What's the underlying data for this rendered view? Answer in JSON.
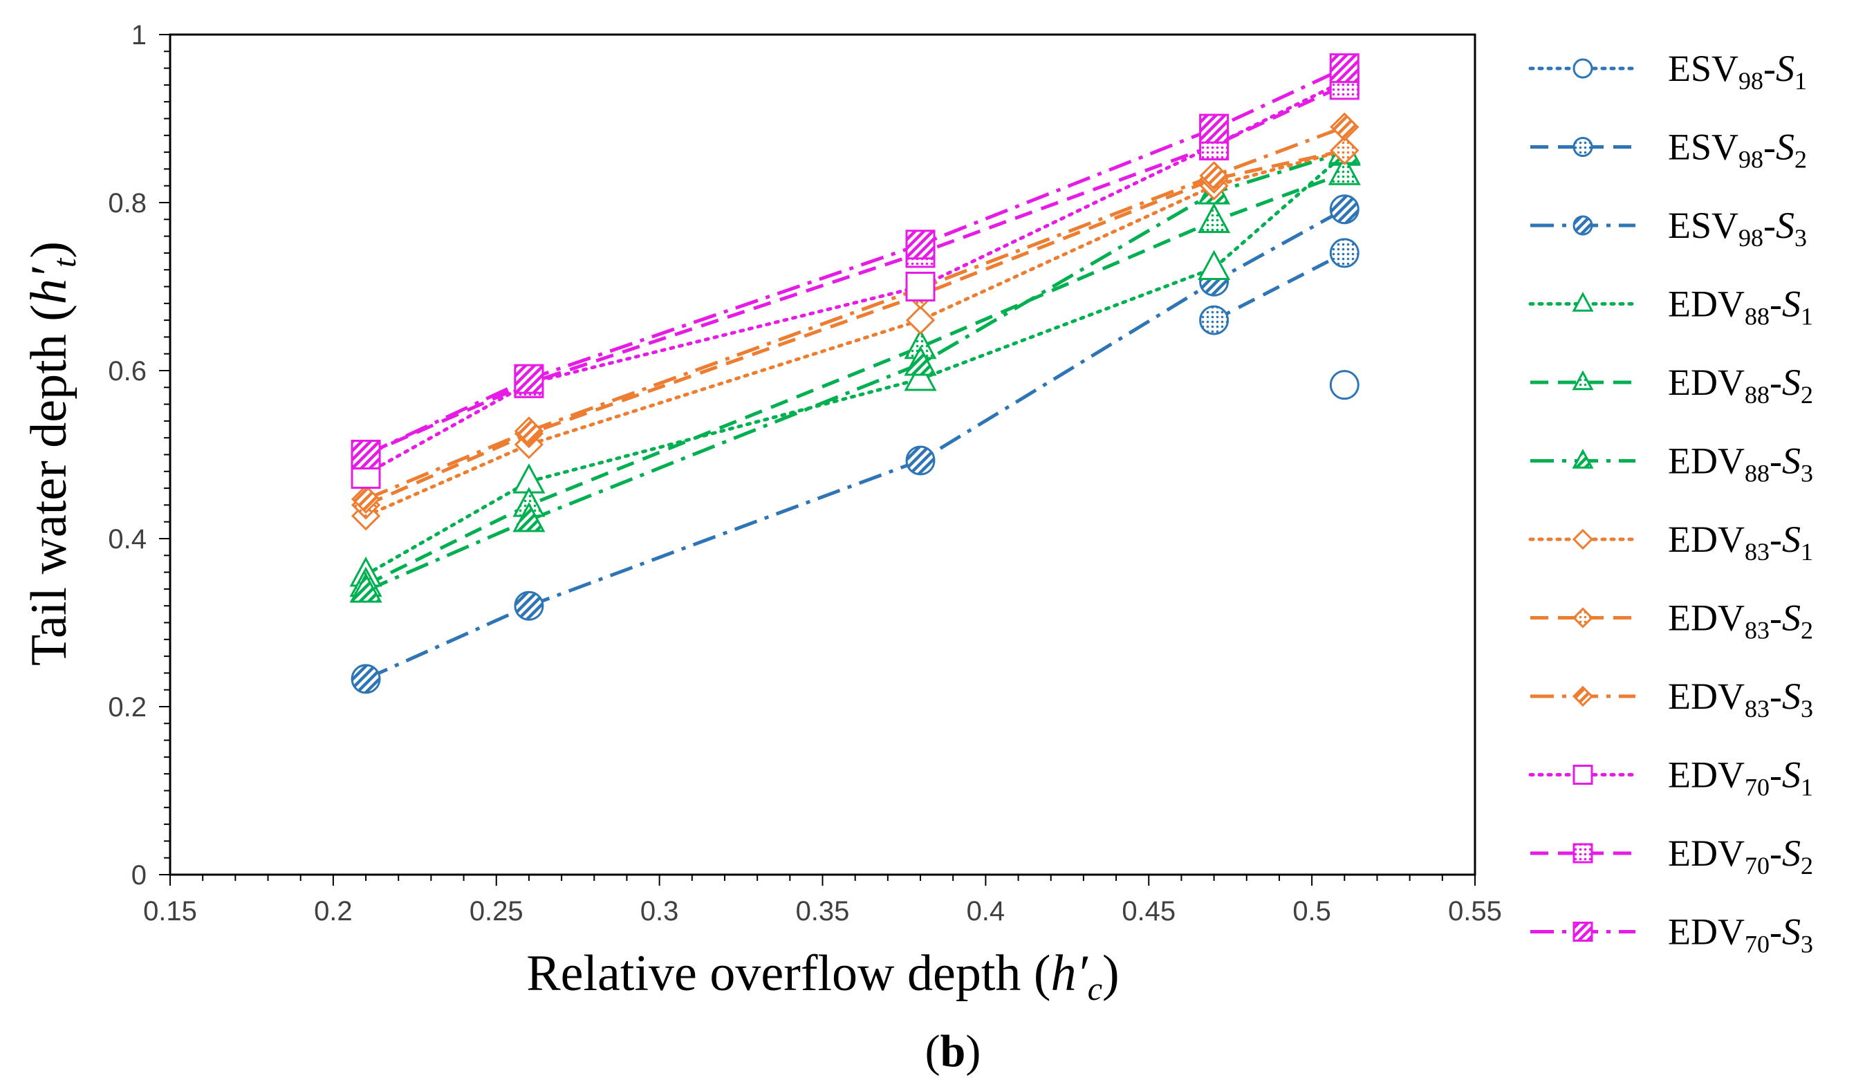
{
  "chart_data": {
    "type": "line",
    "xlabel": "Relative overflow depth",
    "xlabel_symbol": "h′",
    "xlabel_sub": "c",
    "ylabel": "Tail water depth",
    "ylabel_symbol": "h′",
    "ylabel_sub": "t",
    "caption_open": "(",
    "caption": "b",
    "caption_close": ")",
    "xlim": [
      0.15,
      0.55
    ],
    "ylim": [
      0,
      1
    ],
    "x_ticks": [
      "0.15",
      "0.2",
      "0.25",
      "0.3",
      "0.35",
      "0.4",
      "0.45",
      "0.5",
      "0.55"
    ],
    "y_ticks": [
      "0",
      "0.2",
      "0.4",
      "0.6",
      "0.8",
      "1"
    ],
    "x": [
      0.21,
      0.26,
      0.38,
      0.47,
      0.51
    ],
    "series": [
      {
        "name": "ESV98-S1",
        "base": "ESV",
        "num": "98",
        "s": "1",
        "color": "#2e75b6",
        "dash": "dot",
        "marker": "circle",
        "fill": "none",
        "values": [
          null,
          null,
          null,
          null,
          0.583
        ]
      },
      {
        "name": "ESV98-S2",
        "base": "ESV",
        "num": "98",
        "s": "2",
        "color": "#2e75b6",
        "dash": "dash",
        "marker": "circle",
        "fill": "dots",
        "values": [
          null,
          null,
          null,
          0.66,
          0.74
        ]
      },
      {
        "name": "ESV98-S3",
        "base": "ESV",
        "num": "98",
        "s": "3",
        "color": "#2e75b6",
        "dash": "dashdot",
        "marker": "circle",
        "fill": "hatch",
        "values": [
          0.233,
          0.32,
          0.493,
          0.706,
          0.792
        ]
      },
      {
        "name": "EDV88-S1",
        "base": "EDV",
        "num": "88",
        "s": "1",
        "color": "#00b050",
        "dash": "dot",
        "marker": "triangle",
        "fill": "none",
        "values": [
          0.357,
          0.468,
          0.59,
          0.722,
          0.858
        ]
      },
      {
        "name": "EDV88-S2",
        "base": "EDV",
        "num": "88",
        "s": "2",
        "color": "#00b050",
        "dash": "dash",
        "marker": "triangle",
        "fill": "dots",
        "values": [
          0.345,
          0.44,
          0.628,
          0.778,
          0.835
        ]
      },
      {
        "name": "EDV88-S3",
        "base": "EDV",
        "num": "88",
        "s": "3",
        "color": "#00b050",
        "dash": "dashdot",
        "marker": "triangle",
        "fill": "hatch",
        "values": [
          0.338,
          0.422,
          0.608,
          0.812,
          0.86
        ]
      },
      {
        "name": "EDV83-S1",
        "base": "EDV",
        "num": "83",
        "s": "1",
        "color": "#ed7d31",
        "dash": "dot",
        "marker": "diamond",
        "fill": "none",
        "values": [
          0.427,
          0.512,
          0.66,
          0.82,
          0.862
        ]
      },
      {
        "name": "EDV83-S2",
        "base": "EDV",
        "num": "83",
        "s": "2",
        "color": "#ed7d31",
        "dash": "dash",
        "marker": "diamond",
        "fill": "dots",
        "values": [
          0.44,
          0.525,
          0.69,
          0.828,
          0.862
        ]
      },
      {
        "name": "EDV83-S3",
        "base": "EDV",
        "num": "83",
        "s": "3",
        "color": "#ed7d31",
        "dash": "dashdot",
        "marker": "diamond",
        "fill": "hatch",
        "values": [
          0.447,
          0.528,
          0.698,
          0.832,
          0.89
        ]
      },
      {
        "name": "EDV70-S1",
        "base": "EDV",
        "num": "70",
        "s": "1",
        "color": "#e61ce6",
        "dash": "dot",
        "marker": "square",
        "fill": "none",
        "values": [
          0.477,
          0.585,
          0.7,
          0.868,
          0.945
        ]
      },
      {
        "name": "EDV70-S2",
        "base": "EDV",
        "num": "70",
        "s": "2",
        "color": "#e61ce6",
        "dash": "dash",
        "marker": "square",
        "fill": "dots",
        "values": [
          0.5,
          0.585,
          0.74,
          0.868,
          0.94
        ]
      },
      {
        "name": "EDV70-S3",
        "base": "EDV",
        "num": "70",
        "s": "3",
        "color": "#e61ce6",
        "dash": "dashdot",
        "marker": "square",
        "fill": "hatch",
        "values": [
          0.5,
          0.59,
          0.75,
          0.888,
          0.96
        ]
      }
    ]
  }
}
